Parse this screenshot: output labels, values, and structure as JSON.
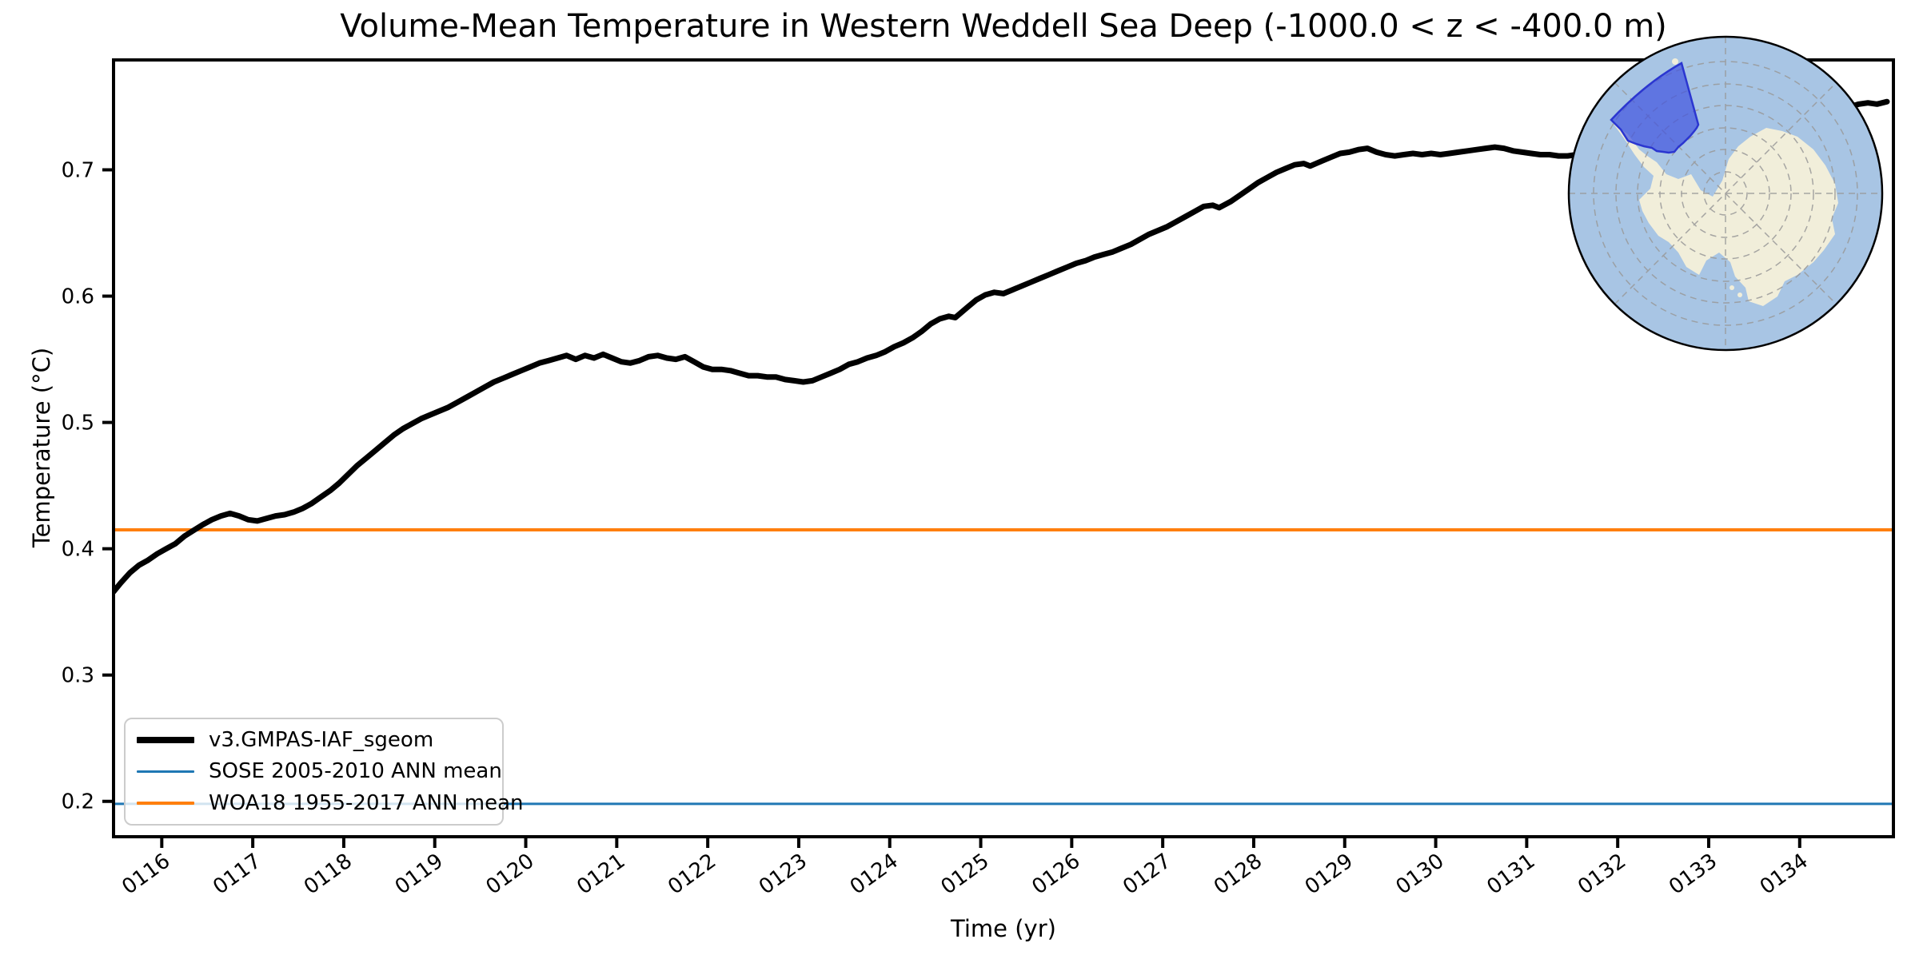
{
  "title": "Volume-Mean Temperature in Western Weddell Sea Deep (-1000.0 < z < -400.0 m)",
  "axes": {
    "xlabel": "Time (yr)",
    "ylabel": "Temperature (°C)",
    "x_ticks": [
      {
        "value": 116,
        "label": "0116"
      },
      {
        "value": 117,
        "label": "0117"
      },
      {
        "value": 118,
        "label": "0118"
      },
      {
        "value": 119,
        "label": "0119"
      },
      {
        "value": 120,
        "label": "0120"
      },
      {
        "value": 121,
        "label": "0121"
      },
      {
        "value": 122,
        "label": "0122"
      },
      {
        "value": 123,
        "label": "0123"
      },
      {
        "value": 124,
        "label": "0124"
      },
      {
        "value": 125,
        "label": "0125"
      },
      {
        "value": 126,
        "label": "0126"
      },
      {
        "value": 127,
        "label": "0127"
      },
      {
        "value": 128,
        "label": "0128"
      },
      {
        "value": 129,
        "label": "0129"
      },
      {
        "value": 130,
        "label": "0130"
      },
      {
        "value": 131,
        "label": "0131"
      },
      {
        "value": 132,
        "label": "0132"
      },
      {
        "value": 133,
        "label": "0133"
      },
      {
        "value": 134,
        "label": "0134"
      }
    ],
    "y_ticks": [
      {
        "value": 0.2,
        "label": "0.2"
      },
      {
        "value": 0.3,
        "label": "0.3"
      },
      {
        "value": 0.4,
        "label": "0.4"
      },
      {
        "value": 0.5,
        "label": "0.5"
      },
      {
        "value": 0.6,
        "label": "0.6"
      },
      {
        "value": 0.7,
        "label": "0.7"
      }
    ]
  },
  "legend": {
    "items": [
      {
        "label": "v3.GMPAS-IAF_sgeom",
        "color": "#000000",
        "thickness": 8
      },
      {
        "label": "SOSE 2005-2010 ANN mean",
        "color": "#1f77b4",
        "thickness": 3
      },
      {
        "label": "WOA18 1955-2017 ANN mean",
        "color": "#ff7f0e",
        "thickness": 4
      }
    ]
  },
  "chart_data": {
    "type": "line",
    "title": "Volume-Mean Temperature in Western Weddell Sea Deep (-1000.0 < z < -400.0 m)",
    "xlabel": "Time (yr)",
    "ylabel": "Temperature (°C)",
    "xlim": [
      115.47,
      135.03
    ],
    "ylim": [
      0.172,
      0.787
    ],
    "grid": false,
    "legend_position": "lower left",
    "series": [
      {
        "name": "v3.GMPAS-IAF_sgeom",
        "kind": "line",
        "color": "#000000",
        "linewidth": 7,
        "points": [
          [
            115.47,
            0.366
          ],
          [
            115.55,
            0.373
          ],
          [
            115.65,
            0.381
          ],
          [
            115.75,
            0.387
          ],
          [
            115.85,
            0.391
          ],
          [
            115.95,
            0.396
          ],
          [
            116.05,
            0.4
          ],
          [
            116.15,
            0.404
          ],
          [
            116.25,
            0.41
          ],
          [
            116.36,
            0.415
          ],
          [
            116.45,
            0.419
          ],
          [
            116.55,
            0.423
          ],
          [
            116.65,
            0.426
          ],
          [
            116.75,
            0.428
          ],
          [
            116.85,
            0.426
          ],
          [
            116.95,
            0.423
          ],
          [
            117.05,
            0.422
          ],
          [
            117.15,
            0.424
          ],
          [
            117.25,
            0.426
          ],
          [
            117.35,
            0.427
          ],
          [
            117.45,
            0.429
          ],
          [
            117.55,
            0.432
          ],
          [
            117.65,
            0.436
          ],
          [
            117.75,
            0.441
          ],
          [
            117.85,
            0.446
          ],
          [
            117.95,
            0.452
          ],
          [
            118.05,
            0.459
          ],
          [
            118.15,
            0.466
          ],
          [
            118.25,
            0.472
          ],
          [
            118.35,
            0.478
          ],
          [
            118.45,
            0.484
          ],
          [
            118.55,
            0.49
          ],
          [
            118.65,
            0.495
          ],
          [
            118.75,
            0.499
          ],
          [
            118.85,
            0.503
          ],
          [
            118.95,
            0.506
          ],
          [
            119.05,
            0.509
          ],
          [
            119.15,
            0.512
          ],
          [
            119.25,
            0.516
          ],
          [
            119.35,
            0.52
          ],
          [
            119.45,
            0.524
          ],
          [
            119.55,
            0.528
          ],
          [
            119.65,
            0.532
          ],
          [
            119.75,
            0.535
          ],
          [
            119.85,
            0.538
          ],
          [
            119.95,
            0.541
          ],
          [
            120.05,
            0.544
          ],
          [
            120.15,
            0.547
          ],
          [
            120.25,
            0.549
          ],
          [
            120.35,
            0.551
          ],
          [
            120.45,
            0.553
          ],
          [
            120.55,
            0.55
          ],
          [
            120.65,
            0.553
          ],
          [
            120.75,
            0.551
          ],
          [
            120.85,
            0.554
          ],
          [
            120.95,
            0.551
          ],
          [
            121.05,
            0.548
          ],
          [
            121.15,
            0.547
          ],
          [
            121.25,
            0.549
          ],
          [
            121.35,
            0.552
          ],
          [
            121.45,
            0.553
          ],
          [
            121.55,
            0.551
          ],
          [
            121.65,
            0.55
          ],
          [
            121.75,
            0.552
          ],
          [
            121.85,
            0.548
          ],
          [
            121.95,
            0.544
          ],
          [
            122.05,
            0.542
          ],
          [
            122.15,
            0.542
          ],
          [
            122.25,
            0.541
          ],
          [
            122.35,
            0.539
          ],
          [
            122.45,
            0.537
          ],
          [
            122.55,
            0.537
          ],
          [
            122.65,
            0.536
          ],
          [
            122.75,
            0.536
          ],
          [
            122.85,
            0.534
          ],
          [
            122.95,
            0.533
          ],
          [
            123.05,
            0.532
          ],
          [
            123.15,
            0.533
          ],
          [
            123.25,
            0.536
          ],
          [
            123.35,
            0.539
          ],
          [
            123.45,
            0.542
          ],
          [
            123.55,
            0.546
          ],
          [
            123.65,
            0.548
          ],
          [
            123.75,
            0.551
          ],
          [
            123.85,
            0.553
          ],
          [
            123.95,
            0.556
          ],
          [
            124.05,
            0.56
          ],
          [
            124.15,
            0.563
          ],
          [
            124.25,
            0.567
          ],
          [
            124.35,
            0.572
          ],
          [
            124.45,
            0.578
          ],
          [
            124.55,
            0.582
          ],
          [
            124.65,
            0.584
          ],
          [
            124.72,
            0.583
          ],
          [
            124.85,
            0.591
          ],
          [
            124.95,
            0.597
          ],
          [
            125.05,
            0.601
          ],
          [
            125.15,
            0.603
          ],
          [
            125.25,
            0.602
          ],
          [
            125.35,
            0.605
          ],
          [
            125.45,
            0.608
          ],
          [
            125.55,
            0.611
          ],
          [
            125.65,
            0.614
          ],
          [
            125.75,
            0.617
          ],
          [
            125.85,
            0.62
          ],
          [
            125.95,
            0.623
          ],
          [
            126.05,
            0.626
          ],
          [
            126.15,
            0.628
          ],
          [
            126.25,
            0.631
          ],
          [
            126.35,
            0.633
          ],
          [
            126.45,
            0.635
          ],
          [
            126.55,
            0.638
          ],
          [
            126.65,
            0.641
          ],
          [
            126.75,
            0.645
          ],
          [
            126.85,
            0.649
          ],
          [
            126.95,
            0.652
          ],
          [
            127.05,
            0.655
          ],
          [
            127.15,
            0.659
          ],
          [
            127.25,
            0.663
          ],
          [
            127.35,
            0.667
          ],
          [
            127.45,
            0.671
          ],
          [
            127.55,
            0.672
          ],
          [
            127.62,
            0.67
          ],
          [
            127.75,
            0.675
          ],
          [
            127.85,
            0.68
          ],
          [
            127.95,
            0.685
          ],
          [
            128.05,
            0.69
          ],
          [
            128.15,
            0.694
          ],
          [
            128.25,
            0.698
          ],
          [
            128.35,
            0.701
          ],
          [
            128.45,
            0.704
          ],
          [
            128.55,
            0.705
          ],
          [
            128.62,
            0.703
          ],
          [
            128.75,
            0.707
          ],
          [
            128.85,
            0.71
          ],
          [
            128.95,
            0.713
          ],
          [
            129.05,
            0.714
          ],
          [
            129.15,
            0.716
          ],
          [
            129.25,
            0.717
          ],
          [
            129.35,
            0.714
          ],
          [
            129.45,
            0.712
          ],
          [
            129.55,
            0.711
          ],
          [
            129.65,
            0.712
          ],
          [
            129.75,
            0.713
          ],
          [
            129.85,
            0.712
          ],
          [
            129.95,
            0.713
          ],
          [
            130.05,
            0.712
          ],
          [
            130.15,
            0.713
          ],
          [
            130.25,
            0.714
          ],
          [
            130.35,
            0.715
          ],
          [
            130.45,
            0.716
          ],
          [
            130.55,
            0.717
          ],
          [
            130.65,
            0.718
          ],
          [
            130.75,
            0.717
          ],
          [
            130.85,
            0.715
          ],
          [
            130.95,
            0.714
          ],
          [
            131.05,
            0.713
          ],
          [
            131.15,
            0.712
          ],
          [
            131.25,
            0.712
          ],
          [
            131.35,
            0.711
          ],
          [
            131.45,
            0.711
          ],
          [
            131.55,
            0.712
          ],
          [
            131.65,
            0.713
          ],
          [
            131.75,
            0.714
          ],
          [
            131.85,
            0.715
          ],
          [
            131.95,
            0.716
          ],
          [
            132.15,
            0.719
          ],
          [
            132.35,
            0.722
          ],
          [
            132.55,
            0.726
          ],
          [
            132.75,
            0.73
          ],
          [
            132.95,
            0.734
          ],
          [
            133.15,
            0.737
          ],
          [
            133.35,
            0.74
          ],
          [
            133.55,
            0.743
          ],
          [
            133.75,
            0.746
          ],
          [
            133.95,
            0.748
          ],
          [
            134.15,
            0.75
          ],
          [
            134.3,
            0.752
          ],
          [
            134.45,
            0.751
          ],
          [
            134.55,
            0.75
          ],
          [
            134.65,
            0.752
          ],
          [
            134.75,
            0.753
          ],
          [
            134.85,
            0.752
          ],
          [
            134.96,
            0.754
          ]
        ]
      },
      {
        "name": "SOSE 2005-2010 ANN mean",
        "kind": "hline",
        "color": "#1f77b4",
        "linewidth": 3,
        "value": 0.198
      },
      {
        "name": "WOA18 1955-2017 ANN mean",
        "kind": "hline",
        "color": "#ff7f0e",
        "linewidth": 4,
        "value": 0.415
      }
    ]
  },
  "inset": {
    "description": "South polar stereographic map of Antarctica with the Western Weddell Sea region highlighted",
    "colors": {
      "ocean": "#a8c5e4",
      "land": "#f1eeda",
      "region_fill": "#4052e0",
      "region_stroke": "#2b36d0",
      "graticule": "#999999",
      "outline": "#000000"
    }
  }
}
